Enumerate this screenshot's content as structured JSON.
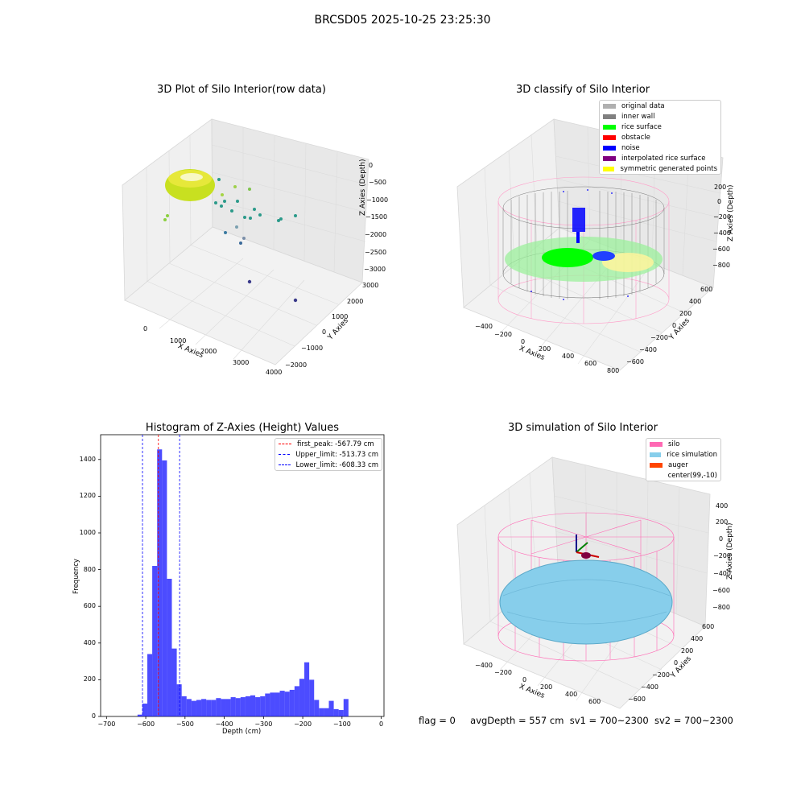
{
  "suptitle": "BRCSD05 2025-10-25 23:25:30",
  "panels": {
    "raw": {
      "title": "3D Plot of Silo Interior(row data)",
      "xlabel": "X Axies",
      "ylabel": "Y Axies",
      "zlabel": "Z Axies (Depth)",
      "xticks": [
        "0",
        "1000",
        "2000",
        "3000",
        "4000"
      ],
      "yticks": [
        "3000",
        "2000",
        "1000",
        "0",
        "−1000",
        "−2000"
      ],
      "zticks": [
        "0",
        "−500",
        "−1000",
        "−1500",
        "−2000",
        "−2500",
        "−3000"
      ]
    },
    "classify": {
      "title": "3D classify of Silo Interior",
      "xlabel": "X Axies",
      "ylabel": "Y Axies",
      "zlabel": "Z Axies (Depth)",
      "xticks": [
        "−400",
        "−200",
        "0",
        "200",
        "400",
        "600",
        "800"
      ],
      "yticks": [
        "600",
        "400",
        "200",
        "0",
        "−200",
        "−400",
        "−600"
      ],
      "zticks": [
        "200",
        "0",
        "−200",
        "−400",
        "−600",
        "−800"
      ],
      "legend": [
        {
          "label": "original data",
          "color": "#b0b0b0"
        },
        {
          "label": "inner wall",
          "color": "#808080"
        },
        {
          "label": "rice surface",
          "color": "#00ff00"
        },
        {
          "label": "obstacle",
          "color": "#ff0000"
        },
        {
          "label": "noise",
          "color": "#0000ff"
        },
        {
          "label": "interpolated rice surface",
          "color": "#800080"
        },
        {
          "label": "symmetric generated points",
          "color": "#ffff00"
        }
      ]
    },
    "simulation": {
      "title": "3D simulation of Silo Interior",
      "xlabel": "X Axies",
      "ylabel": "Y Axies",
      "zlabel": "Z Axies (Depth)",
      "xticks": [
        "−400",
        "−200",
        "0",
        "200",
        "400",
        "600"
      ],
      "yticks": [
        "600",
        "400",
        "200",
        "0",
        "−200",
        "−400",
        "−600"
      ],
      "zticks": [
        "400",
        "200",
        "0",
        "−200",
        "−400",
        "−600",
        "−800"
      ],
      "legend": [
        {
          "label": "silo",
          "color": "#ff69b4"
        },
        {
          "label": "rice simulation",
          "color": "#87ceeb"
        },
        {
          "label": "auger",
          "color": "#ff4500"
        },
        {
          "label": "center(99,-10)",
          "color": ""
        }
      ]
    }
  },
  "status": {
    "flag": "flag = 0",
    "avg_depth": "avgDepth = 557 cm",
    "sv1": "sv1 = 700~2300",
    "sv2": "sv2 = 700~2300"
  },
  "chart_data": {
    "type": "bar",
    "title": "Histogram of Z-Axies (Height) Values",
    "xlabel": "Depth (cm)",
    "ylabel": "Frequency",
    "xlim": [
      -715,
      7
    ],
    "ylim": [
      0,
      1535
    ],
    "xticks": [
      -700,
      -600,
      -500,
      -400,
      -300,
      -200,
      -100,
      0
    ],
    "xtick_labels": [
      "−700",
      "−600",
      "−500",
      "−400",
      "−300",
      "−200",
      "−100",
      "0"
    ],
    "yticks": [
      0,
      200,
      400,
      600,
      800,
      1000,
      1200,
      1400
    ],
    "yticks_labels": [
      "0",
      "200",
      "400",
      "600",
      "800",
      "1000",
      "1200",
      "1400"
    ],
    "bin_start": -621,
    "bin_width": 12.5,
    "values": [
      10,
      70,
      340,
      820,
      1455,
      1395,
      750,
      370,
      175,
      110,
      95,
      85,
      90,
      95,
      90,
      90,
      100,
      95,
      95,
      105,
      100,
      105,
      110,
      115,
      105,
      110,
      125,
      130,
      130,
      140,
      135,
      145,
      165,
      205,
      295,
      200,
      90,
      45,
      45,
      85,
      40,
      35,
      95
    ],
    "bar_color": "#0000ff",
    "vlines": [
      {
        "label": "first_peak: -567.79 cm",
        "x": -567.79,
        "color": "#ff0000"
      },
      {
        "label": "Upper_limit: -513.73 cm",
        "x": -513.73,
        "color": "#0000ff"
      },
      {
        "label": "Lower_limit: -608.33 cm",
        "x": -608.33,
        "color": "#0000ff"
      }
    ],
    "legend_position": "top-right"
  }
}
